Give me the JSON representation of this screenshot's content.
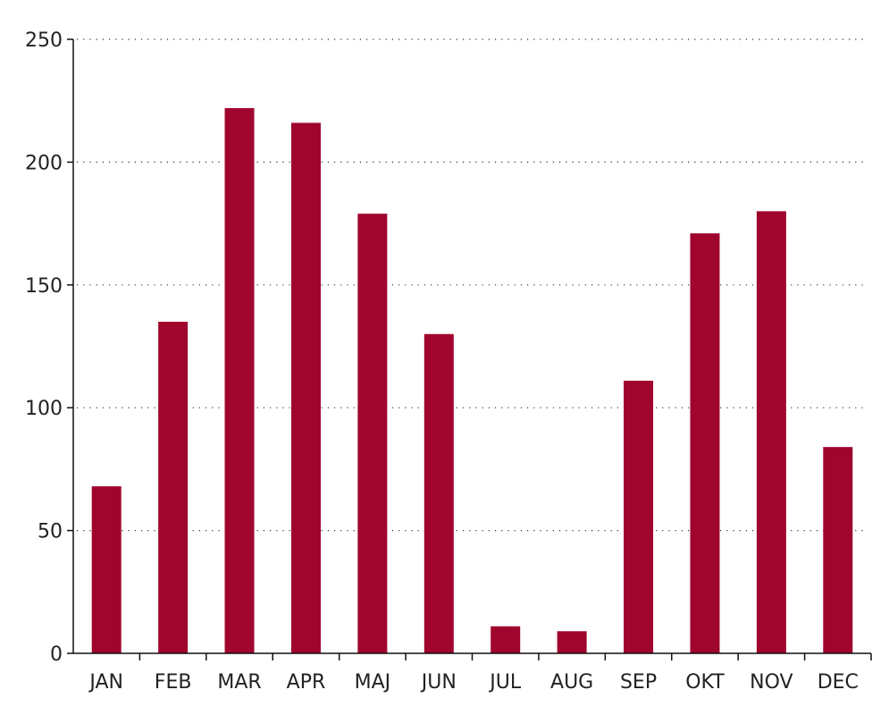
{
  "chart_data": {
    "type": "bar",
    "categories": [
      "JAN",
      "FEB",
      "MAR",
      "APR",
      "MAJ",
      "JUN",
      "JUL",
      "AUG",
      "SEP",
      "OKT",
      "NOV",
      "DEC"
    ],
    "values": [
      68,
      135,
      222,
      216,
      179,
      130,
      11,
      9,
      111,
      171,
      180,
      84
    ],
    "title": "",
    "xlabel": "",
    "ylabel": "",
    "ylim": [
      0,
      250
    ],
    "yticks": [
      0,
      50,
      100,
      150,
      200,
      250
    ],
    "grid": "horizontal-dotted",
    "legend": "none",
    "bar_color": "#A0052D"
  }
}
